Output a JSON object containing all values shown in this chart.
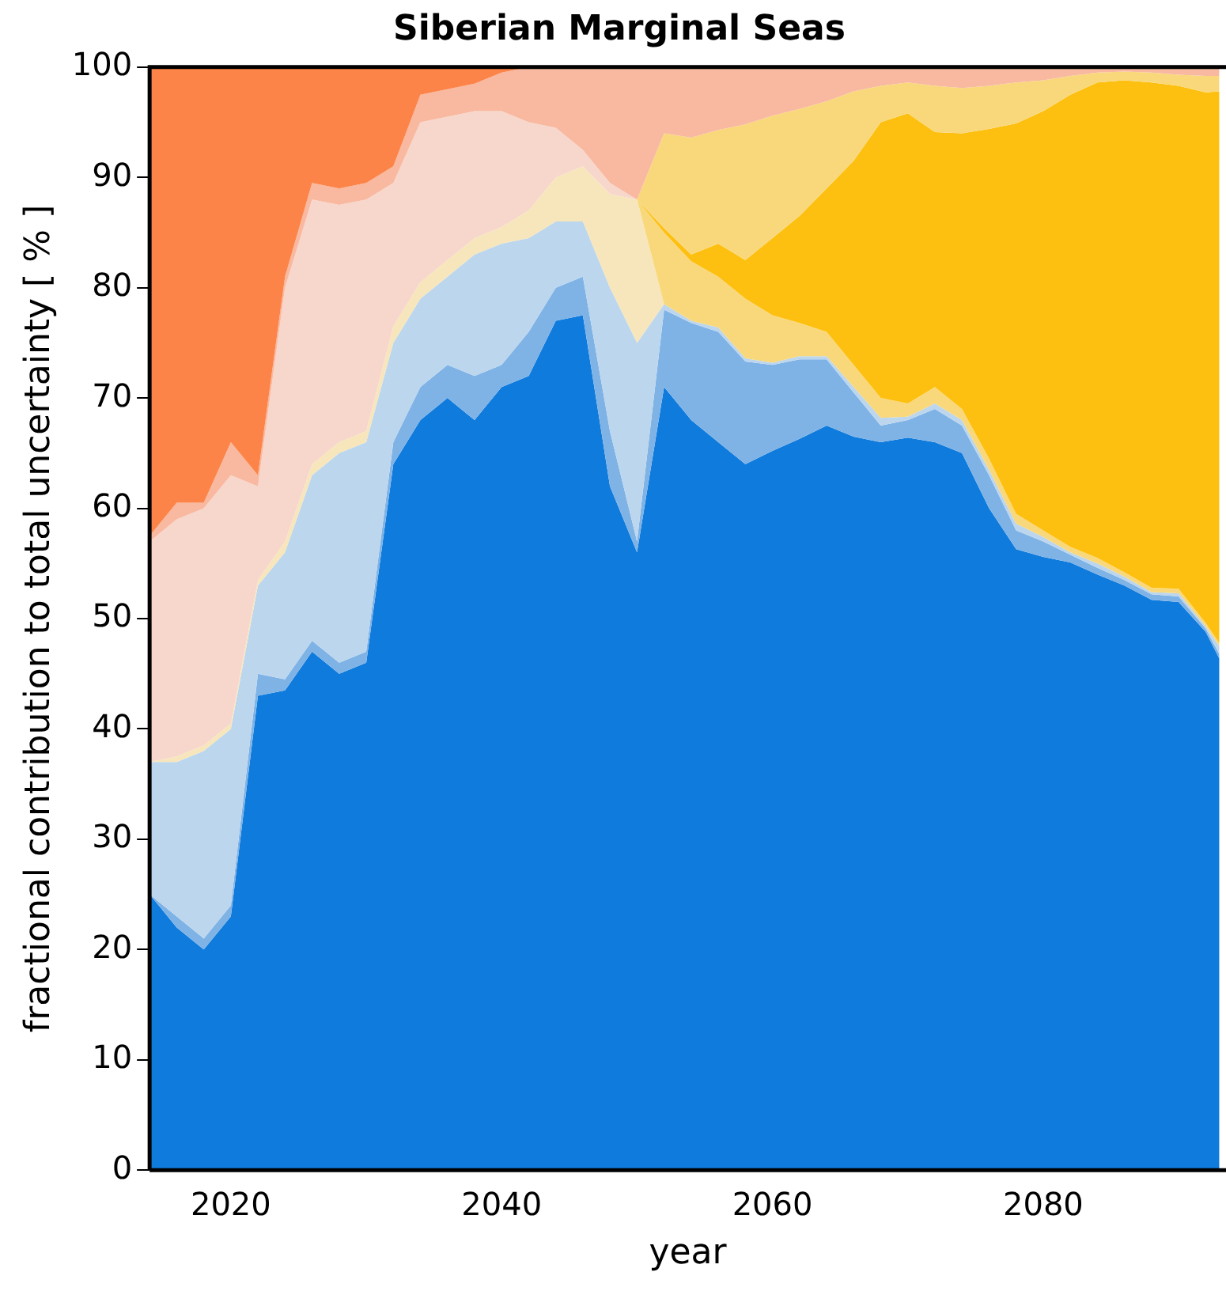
{
  "chart_data": {
    "type": "area",
    "title": "Siberian Marginal Seas",
    "xlabel": "year",
    "ylabel": "fractional contribution to total uncertainty [ % ]",
    "stacked": true,
    "x": [
      2014,
      2016,
      2018,
      2020,
      2022,
      2024,
      2026,
      2028,
      2030,
      2032,
      2034,
      2036,
      2038,
      2040,
      2042,
      2044,
      2046,
      2048,
      2050,
      2052,
      2054,
      2056,
      2058,
      2060,
      2062,
      2064,
      2066,
      2068,
      2070,
      2072,
      2074,
      2076,
      2078,
      2080,
      2082,
      2084,
      2086,
      2088,
      2090,
      2092,
      2093
    ],
    "xlim": [
      2014,
      2093.5
    ],
    "xticks": [
      2020,
      2040,
      2060,
      2080
    ],
    "ylim": [
      0,
      100
    ],
    "yticks": [
      0,
      10,
      20,
      30,
      40,
      50,
      60,
      70,
      80,
      90,
      100
    ],
    "series": [
      {
        "color": "#0f7bdc",
        "values": [
          25,
          22,
          20,
          23,
          43,
          43.5,
          47,
          45,
          46,
          64,
          68,
          70,
          68,
          71,
          72,
          77,
          77.5,
          62,
          56,
          71,
          68,
          66,
          64,
          65.2,
          66.3,
          67.5,
          66.5,
          66,
          66.4,
          66,
          65,
          60,
          56.3,
          55.6,
          55.1,
          54,
          53,
          51.7,
          51.5,
          48.8,
          46.4
        ]
      },
      {
        "color": "#7fb3e6",
        "values": [
          0,
          1,
          1,
          1,
          2,
          1,
          1,
          1,
          1,
          2,
          3,
          3,
          4,
          2,
          4,
          3,
          3.5,
          5,
          1,
          7,
          8.8,
          10,
          9.3,
          7.8,
          7.2,
          6,
          4,
          1.5,
          1.6,
          3,
          2.5,
          3,
          1.7,
          1.4,
          0.7,
          0.6,
          0.5,
          0.5,
          0.5,
          0.3,
          0.4
        ]
      },
      {
        "color": "#bcd6ee",
        "values": [
          12,
          14,
          17,
          16,
          8,
          11.5,
          15,
          19,
          19,
          9,
          8,
          8,
          11,
          11,
          8.5,
          6,
          5,
          13,
          18,
          0.5,
          0.2,
          0.4,
          0.3,
          0.2,
          0.3,
          0.3,
          0.5,
          0.7,
          0.3,
          0.5,
          0.5,
          0.5,
          0.6,
          0.4,
          0.2,
          0.4,
          0.3,
          0.2,
          0.3,
          0.2,
          0.7
        ]
      },
      {
        "color": "#f7e6bb",
        "values": [
          0,
          0.5,
          0.5,
          0.5,
          0.5,
          1,
          1,
          1,
          1,
          1.5,
          1.5,
          1.5,
          1.5,
          1.5,
          2.5,
          4,
          5,
          8.5,
          13,
          0,
          null,
          null,
          null,
          null,
          null,
          null,
          null,
          null,
          null,
          null,
          null,
          null,
          null,
          null,
          null,
          null,
          null,
          null,
          null,
          null,
          null
        ]
      },
      {
        "color": "#f9d87c",
        "values": [
          null,
          null,
          null,
          null,
          null,
          null,
          null,
          null,
          null,
          null,
          null,
          null,
          null,
          null,
          null,
          null,
          null,
          null,
          0,
          6.5,
          5.4,
          4.6,
          5.4,
          4.3,
          3,
          2.2,
          2,
          1.8,
          1.2,
          1.5,
          1,
          1,
          0.9,
          0.6,
          0.5,
          0.5,
          0.4,
          0.4,
          0.4,
          0.3,
          0.3
        ]
      },
      {
        "color": "#fdc010",
        "values": [
          null,
          null,
          null,
          null,
          null,
          null,
          null,
          null,
          null,
          null,
          null,
          null,
          null,
          null,
          null,
          null,
          null,
          null,
          0,
          0.4,
          0.6,
          3,
          3.5,
          7,
          9.7,
          13,
          18.5,
          25,
          26.3,
          23.1,
          25,
          29.9,
          35.4,
          38,
          41,
          43.1,
          44.6,
          45.8,
          45.6,
          48.1,
          50
        ]
      },
      {
        "color": "#f9d87c",
        "values": [
          null,
          null,
          null,
          null,
          null,
          null,
          null,
          null,
          null,
          null,
          null,
          null,
          null,
          null,
          null,
          null,
          null,
          null,
          0,
          8.6,
          10.6,
          10.3,
          12.3,
          11.1,
          9.7,
          7.9,
          6.3,
          3.3,
          2.8,
          4.2,
          4.1,
          3.9,
          3.7,
          2.8,
          1.7,
          0.9,
          0.8,
          0.9,
          1,
          1.5,
          1.4
        ]
      },
      {
        "color": "#f7d7cc",
        "values": [
          20,
          21.5,
          21.5,
          22.5,
          8.5,
          23,
          24,
          21.5,
          21,
          13,
          14.5,
          13,
          11.5,
          10.5,
          8,
          4.5,
          1.5,
          1,
          0,
          null,
          null,
          null,
          null,
          null,
          null,
          null,
          null,
          null,
          null,
          null,
          null,
          null,
          null,
          null,
          null,
          null,
          null,
          null,
          null,
          null,
          null
        ]
      },
      {
        "color": "#f8b9a0",
        "values": [
          0.5,
          1.5,
          0.5,
          3,
          1,
          1,
          1.5,
          1.5,
          1.5,
          1.5,
          2.5,
          2.5,
          2.5,
          3.5,
          5,
          5.5,
          7.5,
          10.5,
          12,
          6,
          6.4,
          5.7,
          5.2,
          4.4,
          3.8,
          3.1,
          2.2,
          1.7,
          1.4,
          1.7,
          1.9,
          1.7,
          1.4,
          1.2,
          0.8,
          0.5,
          0.4,
          0.5,
          0.7,
          0.8,
          0.8
        ]
      },
      {
        "color": "#fd8449",
        "values": [
          42.5,
          39.5,
          39.5,
          34,
          37,
          19,
          10.5,
          11,
          10.5,
          9,
          2.5,
          2,
          1.5,
          0.5,
          0,
          null,
          null,
          null,
          null,
          null,
          null,
          null,
          null,
          null,
          null,
          null,
          null,
          null,
          null,
          null,
          null,
          null,
          null,
          null,
          null,
          null,
          null,
          null,
          null,
          null,
          null
        ]
      }
    ]
  }
}
